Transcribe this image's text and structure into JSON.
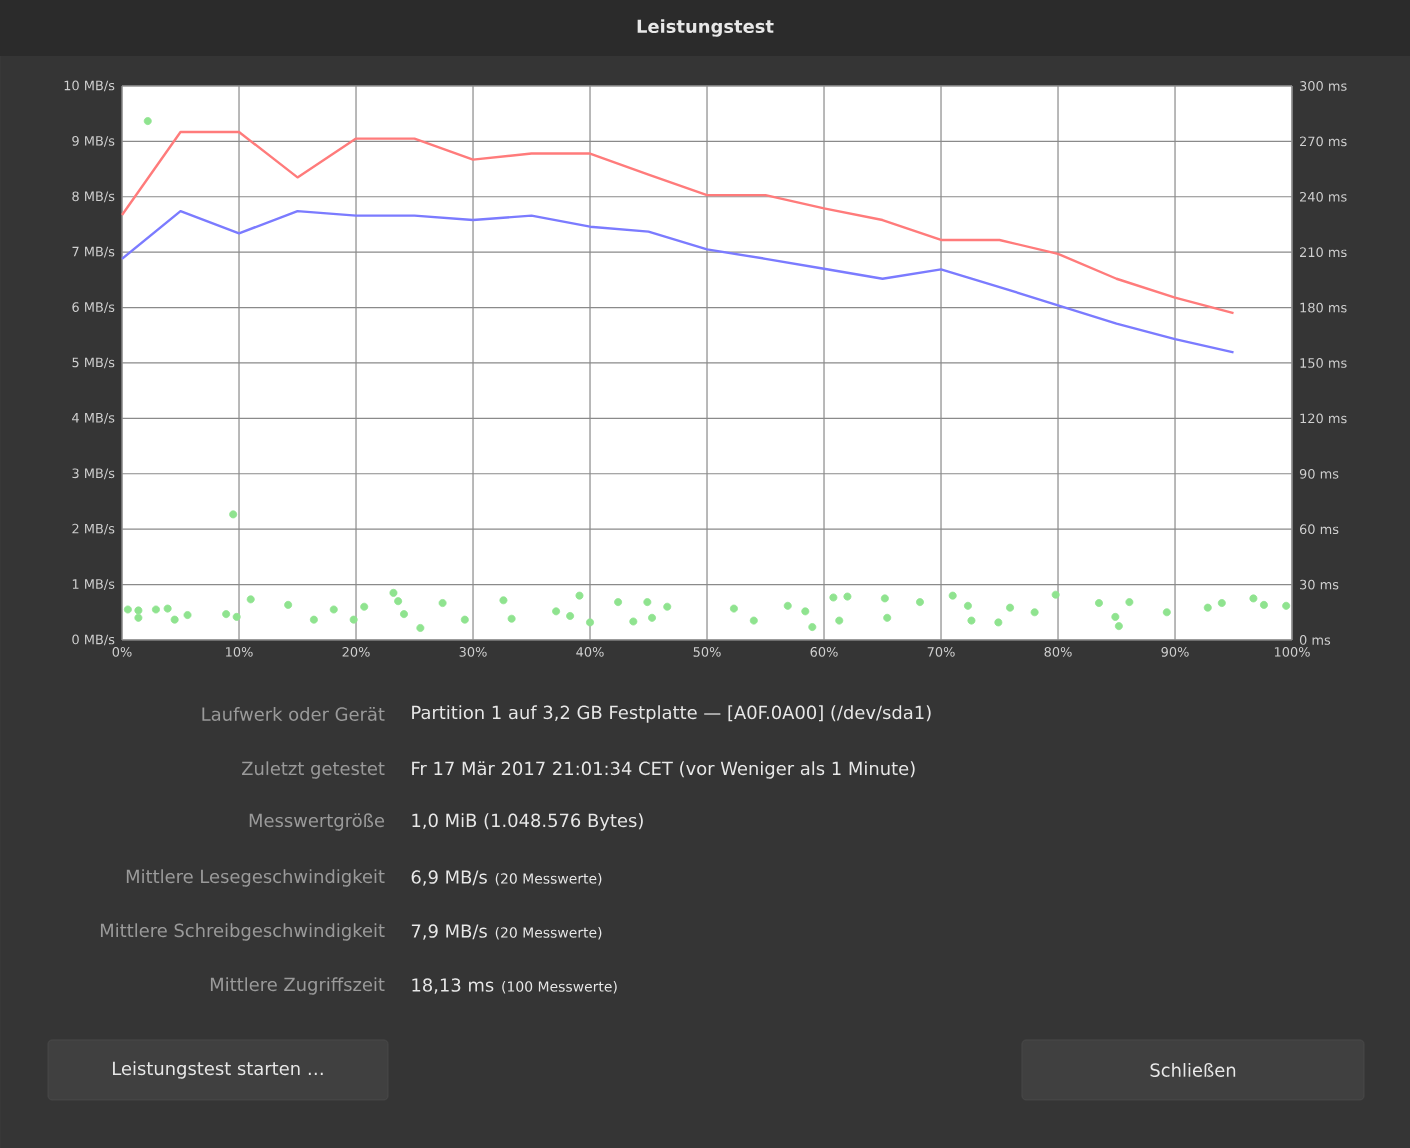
{
  "chart_data": {
    "type": "line",
    "title": "Leistungstest",
    "x": [
      0,
      5,
      10,
      15,
      20,
      25,
      30,
      35,
      40,
      45,
      50,
      55,
      60,
      65,
      70,
      75,
      80,
      85,
      90,
      95
    ],
    "series": [
      {
        "color": "#ff7b7b",
        "values": [
          7.67,
          9.17,
          9.17,
          8.35,
          9.05,
          9.05,
          8.67,
          8.78,
          8.78,
          8.4,
          8.03,
          8.03,
          7.79,
          7.58,
          7.22,
          7.22,
          6.97,
          6.52,
          6.18,
          5.9
        ]
      },
      {
        "color": "#7b7bff",
        "values": [
          6.88,
          7.74,
          7.34,
          7.74,
          7.66,
          7.66,
          7.58,
          7.66,
          7.46,
          7.37,
          7.05,
          6.88,
          6.7,
          6.52,
          6.69,
          6.37,
          6.04,
          5.71,
          5.43,
          5.19
        ]
      },
      {
        "type": "scatter",
        "axis": "y2",
        "color": "#8fe38f",
        "x": [
          0.5,
          1.4,
          1.4,
          2.2,
          2.9,
          3.9,
          4.5,
          5.6,
          8.9,
          9.5,
          9.8,
          11,
          14.2,
          16.4,
          18.1,
          19.8,
          20.7,
          23.2,
          23.6,
          24.1,
          25.5,
          27.4,
          29.3,
          32.6,
          33.3,
          37.1,
          38.3,
          39.1,
          40,
          42.4,
          43.7,
          44.9,
          45.3,
          46.6,
          52.3,
          54,
          56.9,
          58.4,
          59,
          60.8,
          61.3,
          62,
          65.2,
          65.4,
          68.2,
          71,
          72.3,
          72.6,
          74.9,
          75.9,
          78,
          79.8,
          83.5,
          84.9,
          85.2,
          86.1,
          89.3,
          92.8,
          94,
          96.7,
          97.6,
          99.5
        ],
        "values": [
          16.5,
          16,
          12,
          281,
          16.5,
          17,
          11,
          13.5,
          14,
          68,
          12.5,
          22,
          19,
          11,
          16.5,
          11,
          18,
          25.5,
          21,
          14,
          6.5,
          20,
          11,
          21.5,
          11.5,
          15.5,
          13,
          24,
          9.5,
          20.5,
          10,
          20.5,
          12,
          18,
          17,
          10.5,
          18.5,
          15.5,
          7,
          23,
          10.5,
          23.5,
          22.5,
          12,
          20.5,
          24,
          18.5,
          10.5,
          9.5,
          17.5,
          15,
          24.5,
          20,
          12.5,
          7.5,
          20.5,
          15,
          17.5,
          20,
          22.5,
          19,
          18.5
        ]
      }
    ],
    "xlim": [
      0,
      100
    ],
    "xticks": [
      {
        "value": 0,
        "label": "0%"
      },
      {
        "value": 10,
        "label": "10%"
      },
      {
        "value": 20,
        "label": "20%"
      },
      {
        "value": 30,
        "label": "30%"
      },
      {
        "value": 40,
        "label": "40%"
      },
      {
        "value": 50,
        "label": "50%"
      },
      {
        "value": 60,
        "label": "60%"
      },
      {
        "value": 70,
        "label": "70%"
      },
      {
        "value": 80,
        "label": "80%"
      },
      {
        "value": 90,
        "label": "90%"
      },
      {
        "value": 100,
        "label": "100%"
      }
    ],
    "ylim": [
      0,
      10
    ],
    "yticks": [
      {
        "value": 0,
        "label": "0 MB/s"
      },
      {
        "value": 1,
        "label": "1 MB/s"
      },
      {
        "value": 2,
        "label": "2 MB/s"
      },
      {
        "value": 3,
        "label": "3 MB/s"
      },
      {
        "value": 4,
        "label": "4 MB/s"
      },
      {
        "value": 5,
        "label": "5 MB/s"
      },
      {
        "value": 6,
        "label": "6 MB/s"
      },
      {
        "value": 7,
        "label": "7 MB/s"
      },
      {
        "value": 8,
        "label": "8 MB/s"
      },
      {
        "value": 9,
        "label": "9 MB/s"
      },
      {
        "value": 10,
        "label": "10 MB/s"
      }
    ],
    "y2lim": [
      0,
      300
    ],
    "y2ticks": [
      {
        "value": 0,
        "label": "0 ms"
      },
      {
        "value": 30,
        "label": "30 ms"
      },
      {
        "value": 60,
        "label": "60 ms"
      },
      {
        "value": 90,
        "label": "90 ms"
      },
      {
        "value": 120,
        "label": "120 ms"
      },
      {
        "value": 150,
        "label": "150 ms"
      },
      {
        "value": 180,
        "label": "180 ms"
      },
      {
        "value": 210,
        "label": "210 ms"
      },
      {
        "value": 240,
        "label": "240 ms"
      },
      {
        "value": 270,
        "label": "270 ms"
      },
      {
        "value": 300,
        "label": "300 ms"
      }
    ],
    "grid": true,
    "annotations": [
      "Laufwerk oder Gerät",
      "Zuletzt getestet",
      "Messwertgröße",
      "Mittlere Lesegeschwindigkeit",
      "Mittlere Schreibgeschwindigkeit",
      "Mittlere Zugriffszeit",
      "Partition 1 auf 3,2 GB Festplatte — [A0F.0A00] (/dev/sda1)",
      "Fr 17 Mär 2017 21:01:34 CET (vor Weniger als 1 Minute)",
      "1,0 MiB (1.048.576 Bytes)",
      "6,9 MB/s",
      "7,9 MB/s",
      "18,13 ms",
      "(20 Messwerte)",
      "(20 Messwerte)",
      "(100 Messwerte)",
      "Leistungstest starten …",
      "Schließen"
    ]
  }
}
